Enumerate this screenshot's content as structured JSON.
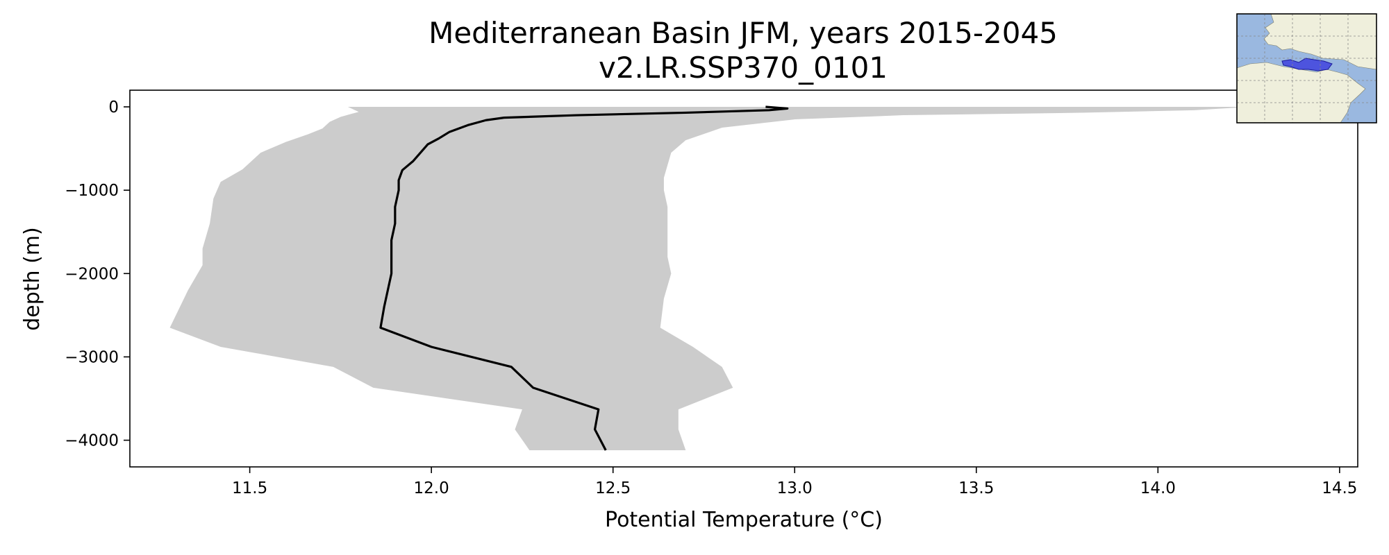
{
  "chart_data": {
    "type": "line",
    "title": "Mediterranean Basin JFM, years 2015-2045",
    "subtitle": "v2.LR.SSP370_0101",
    "xlabel": "Potential Temperature (°C)",
    "ylabel": "depth (m)",
    "xlim": [
      11.17,
      14.55
    ],
    "ylim": [
      -4320,
      200
    ],
    "xticks": [
      11.5,
      12.0,
      12.5,
      13.0,
      13.5,
      14.0,
      14.5
    ],
    "xtick_labels": [
      "11.5",
      "12.0",
      "12.5",
      "13.0",
      "13.5",
      "14.0",
      "14.5"
    ],
    "yticks": [
      0,
      -1000,
      -2000,
      -3000,
      -4000
    ],
    "ytick_labels": [
      "0",
      "−1000",
      "−2000",
      "−3000",
      "−4000"
    ],
    "grid": false,
    "colors": {
      "mean_line": "#000000",
      "range_fill": "#cccccc",
      "inset_ocean": "#9ab8e0",
      "inset_land": "#efefdc",
      "inset_region": "#3333dd"
    },
    "series": [
      {
        "role": "mean",
        "points": [
          [
            12.92,
            0
          ],
          [
            12.98,
            -20
          ],
          [
            12.93,
            -40
          ],
          [
            12.7,
            -70
          ],
          [
            12.4,
            -100
          ],
          [
            12.2,
            -130
          ],
          [
            12.15,
            -160
          ],
          [
            12.1,
            -220
          ],
          [
            12.05,
            -300
          ],
          [
            12.02,
            -380
          ],
          [
            11.99,
            -450
          ],
          [
            11.97,
            -550
          ],
          [
            11.95,
            -650
          ],
          [
            11.92,
            -760
          ],
          [
            11.91,
            -880
          ],
          [
            11.91,
            -1000
          ],
          [
            11.9,
            -1200
          ],
          [
            11.9,
            -1400
          ],
          [
            11.89,
            -1600
          ],
          [
            11.89,
            -1800
          ],
          [
            11.89,
            -2000
          ],
          [
            11.88,
            -2200
          ],
          [
            11.87,
            -2400
          ],
          [
            11.86,
            -2650
          ],
          [
            12.0,
            -2880
          ],
          [
            12.22,
            -3120
          ],
          [
            12.28,
            -3370
          ],
          [
            12.46,
            -3630
          ],
          [
            12.45,
            -3870
          ],
          [
            12.48,
            -4120
          ]
        ]
      },
      {
        "role": "range",
        "min": [
          [
            11.77,
            0
          ],
          [
            11.8,
            -60
          ],
          [
            11.75,
            -120
          ],
          [
            11.72,
            -180
          ],
          [
            11.7,
            -260
          ],
          [
            11.66,
            -330
          ],
          [
            11.6,
            -420
          ],
          [
            11.53,
            -550
          ],
          [
            11.48,
            -750
          ],
          [
            11.42,
            -900
          ],
          [
            11.4,
            -1100
          ],
          [
            11.39,
            -1400
          ],
          [
            11.37,
            -1700
          ],
          [
            11.37,
            -1900
          ],
          [
            11.33,
            -2200
          ],
          [
            11.28,
            -2650
          ],
          [
            11.42,
            -2880
          ],
          [
            11.73,
            -3120
          ],
          [
            11.84,
            -3370
          ],
          [
            12.25,
            -3630
          ],
          [
            12.23,
            -3870
          ],
          [
            12.27,
            -4120
          ]
        ],
        "max": [
          [
            14.25,
            0
          ],
          [
            14.1,
            -40
          ],
          [
            13.8,
            -70
          ],
          [
            13.3,
            -100
          ],
          [
            13.0,
            -150
          ],
          [
            12.8,
            -250
          ],
          [
            12.7,
            -400
          ],
          [
            12.66,
            -550
          ],
          [
            12.65,
            -700
          ],
          [
            12.64,
            -850
          ],
          [
            12.64,
            -1000
          ],
          [
            12.65,
            -1200
          ],
          [
            12.65,
            -1500
          ],
          [
            12.65,
            -1800
          ],
          [
            12.66,
            -2000
          ],
          [
            12.64,
            -2300
          ],
          [
            12.63,
            -2650
          ],
          [
            12.72,
            -2880
          ],
          [
            12.8,
            -3120
          ],
          [
            12.83,
            -3370
          ],
          [
            12.68,
            -3630
          ],
          [
            12.68,
            -3870
          ],
          [
            12.7,
            -4120
          ]
        ]
      }
    ]
  },
  "inset_map": {
    "icon": "mediterranean-region-map-icon"
  }
}
